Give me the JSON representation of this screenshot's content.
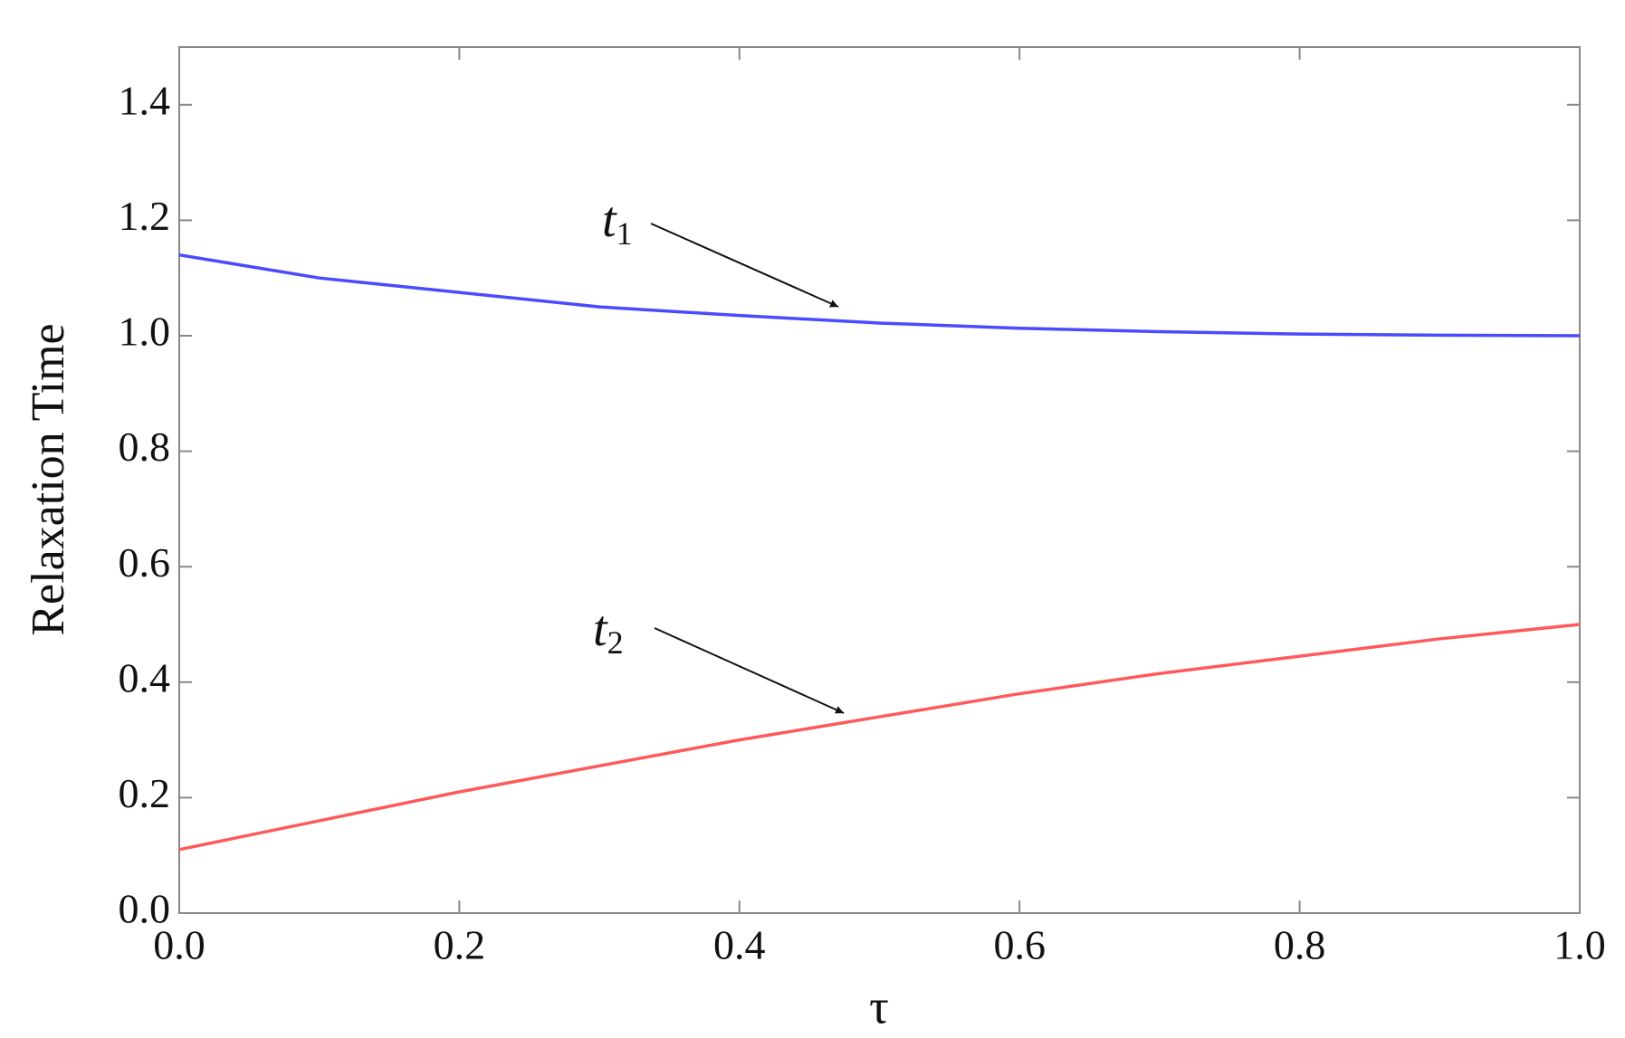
{
  "chart_data": {
    "type": "line",
    "x_label": "τ",
    "y_label": "Relaxation Time",
    "x": [
      0,
      0.1,
      0.2,
      0.3,
      0.4,
      0.5,
      0.6,
      0.7,
      0.8,
      0.9,
      1.0
    ],
    "series": [
      {
        "label_text": "t",
        "label_sub": "1",
        "color": "#4a4aff",
        "values": [
          1.14,
          1.1,
          1.075,
          1.05,
          1.035,
          1.022,
          1.013,
          1.007,
          1.003,
          1.001,
          1.0
        ]
      },
      {
        "label_text": "t",
        "label_sub": "2",
        "color": "#ff5a5a",
        "values": [
          0.11,
          0.16,
          0.21,
          0.255,
          0.3,
          0.34,
          0.38,
          0.415,
          0.445,
          0.475,
          0.5
        ]
      }
    ],
    "xlim": [
      0,
      1.0
    ],
    "ylim": [
      0,
      1.5
    ],
    "xticks": [
      {
        "value": 0,
        "label": "0.0"
      },
      {
        "value": 0.2,
        "label": "0.2"
      },
      {
        "value": 0.4,
        "label": "0.4"
      },
      {
        "value": 0.6,
        "label": "0.6"
      },
      {
        "value": 0.8,
        "label": "0.8"
      },
      {
        "value": 1.0,
        "label": "1.0"
      }
    ],
    "yticks": [
      {
        "value": 0,
        "label": "0.0"
      },
      {
        "value": 0.2,
        "label": "0.2"
      },
      {
        "value": 0.4,
        "label": "0.4"
      },
      {
        "value": 0.6,
        "label": "0.6"
      },
      {
        "value": 0.8,
        "label": "0.8"
      },
      {
        "value": 1.0,
        "label": "1.0"
      },
      {
        "value": 1.2,
        "label": "1.2"
      },
      {
        "value": 1.4,
        "label": "1.4"
      }
    ]
  }
}
